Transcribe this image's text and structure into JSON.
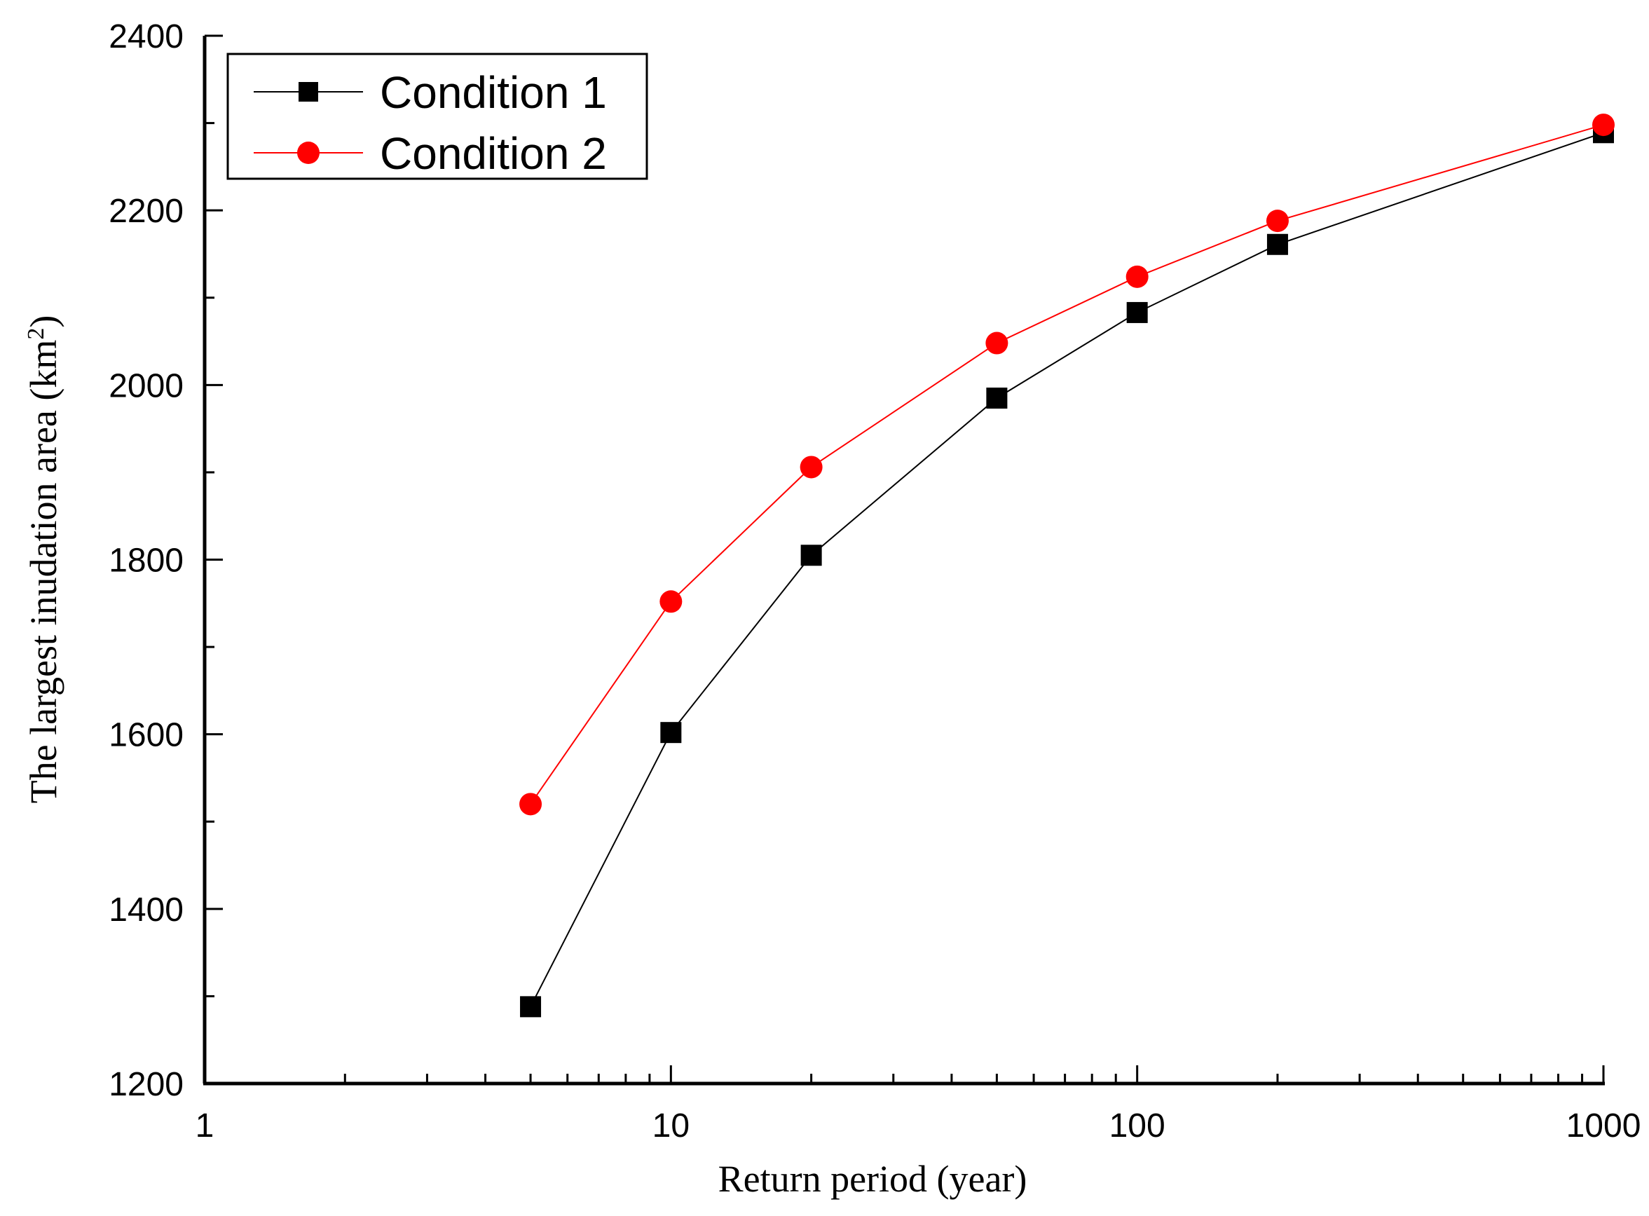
{
  "chart_data": {
    "type": "line",
    "title": "",
    "xlabel": "Return period  (year)",
    "ylabel": "The largest inudation area (km",
    "ylabel_superscript": "2",
    "ylabel_close": ")",
    "xscale": "log",
    "xlim": [
      1,
      1000
    ],
    "ylim": [
      1200,
      2400
    ],
    "x_ticks": [
      1,
      10,
      100,
      1000
    ],
    "x_tick_labels": [
      "1",
      "10",
      "100",
      "1000"
    ],
    "y_ticks": [
      1200,
      1400,
      1600,
      1800,
      2000,
      2200,
      2400
    ],
    "y_tick_labels": [
      "1200",
      "1400",
      "1600",
      "1800",
      "2000",
      "2200",
      "2400"
    ],
    "grid": false,
    "legend_position": "top-left",
    "x": [
      5,
      10,
      20,
      50,
      100,
      200,
      1000
    ],
    "series": [
      {
        "name": "Condition 1",
        "color": "#000000",
        "marker": "square",
        "values": [
          1288,
          1602,
          1805,
          1985,
          2083,
          2161,
          2289
        ]
      },
      {
        "name": "Condition 2",
        "color": "#ff0000",
        "marker": "circle",
        "values": [
          1520,
          1752,
          1906,
          2048,
          2124,
          2188,
          2298
        ]
      }
    ]
  }
}
